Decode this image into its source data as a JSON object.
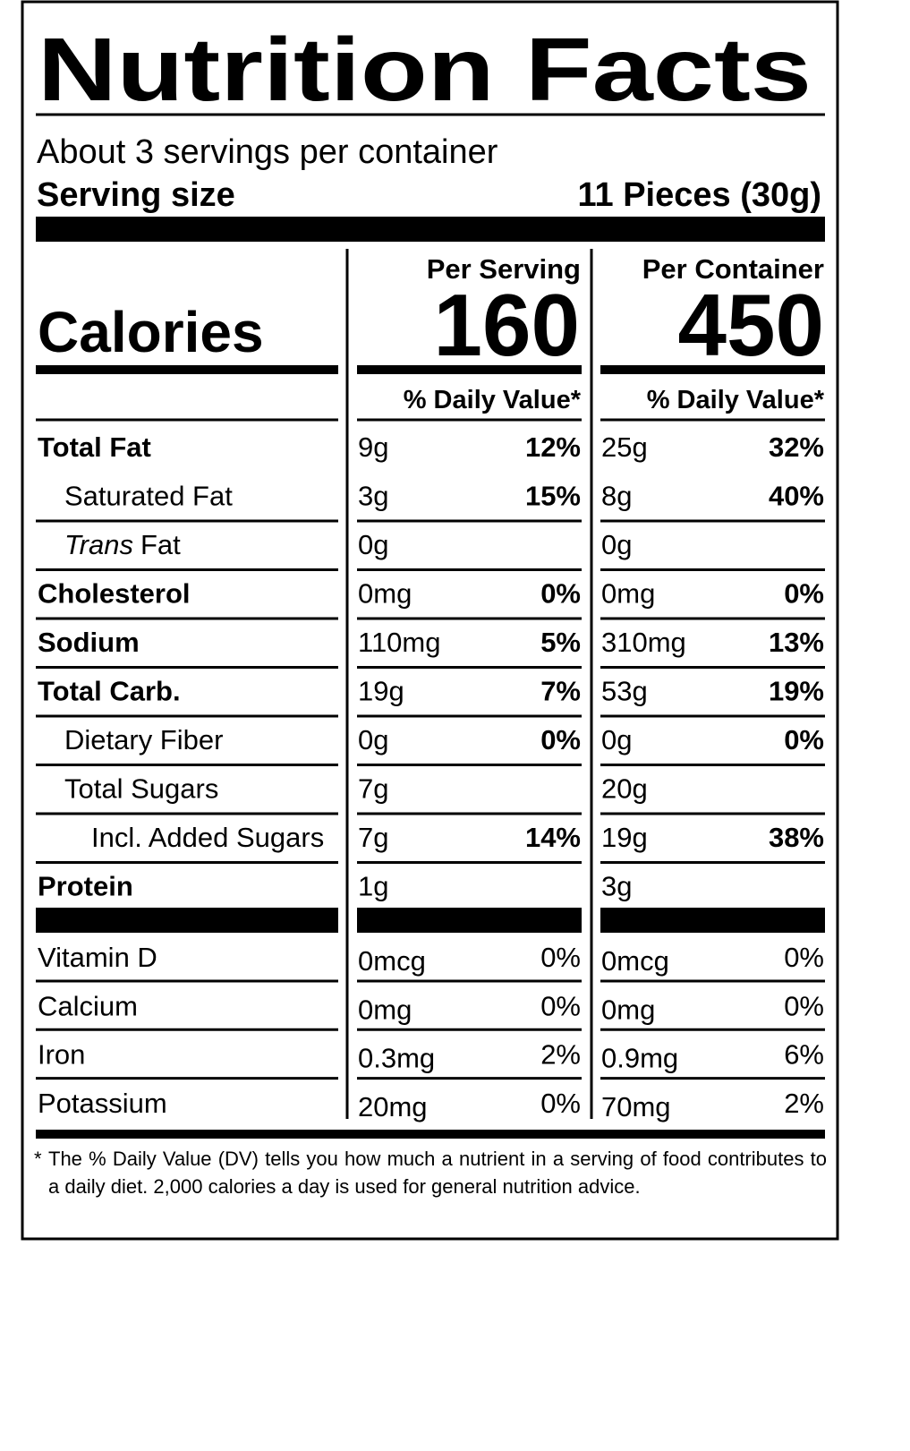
{
  "title": "Nutrition Facts",
  "servings": "About 3 servings per container",
  "serving_size": {
    "label": "Serving size",
    "value": "11 Pieces (30g)"
  },
  "columns": [
    "Per Serving",
    "Per Container"
  ],
  "calories": {
    "label": "Calories",
    "values": [
      "160",
      "450"
    ]
  },
  "dv_header": [
    "% Daily Value*",
    "% Daily Value*"
  ],
  "nutrients": [
    {
      "name": "Total Fat",
      "serving": {
        "amount": "9g",
        "dv": "12%"
      },
      "container": {
        "amount": "25g",
        "dv": "32%"
      },
      "sub": [
        {
          "name": "Saturated Fat",
          "serving": {
            "amount": "3g",
            "dv": "15%"
          },
          "container": {
            "amount": "8g",
            "dv": "40%"
          }
        },
        {
          "name_italic": "Trans",
          "name": "Fat",
          "serving": {
            "amount": "0g"
          },
          "container": {
            "amount": "0g"
          }
        }
      ]
    },
    {
      "name": "Cholesterol",
      "serving": {
        "amount": "0mg",
        "dv": "0%"
      },
      "container": {
        "amount": "0mg",
        "dv": "0%"
      }
    },
    {
      "name": "Sodium",
      "serving": {
        "amount": "110mg",
        "dv": "5%"
      },
      "container": {
        "amount": "310mg",
        "dv": "13%"
      }
    },
    {
      "name": "Total Carb.",
      "serving": {
        "amount": "19g",
        "dv": "7%"
      },
      "container": {
        "amount": "53g",
        "dv": "19%"
      },
      "sub": [
        {
          "name": "Dietary Fiber",
          "serving": {
            "amount": "0g",
            "dv": "0%"
          },
          "container": {
            "amount": "0g",
            "dv": "0%"
          }
        },
        {
          "name": "Total Sugars",
          "serving": {
            "amount": "7g"
          },
          "container": {
            "amount": "20g"
          },
          "sub": [
            {
              "name": "Incl. Added Sugars",
              "serving": {
                "amount": "7g",
                "dv": "14%"
              },
              "container": {
                "amount": "19g",
                "dv": "38%"
              }
            }
          ]
        }
      ]
    },
    {
      "name": "Protein",
      "serving": {
        "amount": "1g"
      },
      "container": {
        "amount": "3g"
      }
    }
  ],
  "vitamins": [
    {
      "name": "Vitamin D",
      "serving": {
        "amount": "0mcg",
        "dv": "0%"
      },
      "container": {
        "amount": "0mcg",
        "dv": "0%"
      }
    },
    {
      "name": "Calcium",
      "serving": {
        "amount": "0mg",
        "dv": "0%"
      },
      "container": {
        "amount": "0mg",
        "dv": "0%"
      }
    },
    {
      "name": "Iron",
      "serving": {
        "amount": "0.3mg",
        "dv": "2%"
      },
      "container": {
        "amount": "0.9mg",
        "dv": "6%"
      }
    },
    {
      "name": "Potassium",
      "serving": {
        "amount": "20mg",
        "dv": "0%"
      },
      "container": {
        "amount": "70mg",
        "dv": "2%"
      }
    }
  ],
  "footnote": {
    "marker": "*",
    "text": "The % Daily Value (DV) tells you how much a nutrient in a serving of food contributes to a daily diet. 2,000 calories a day is used for general nutrition advice."
  }
}
